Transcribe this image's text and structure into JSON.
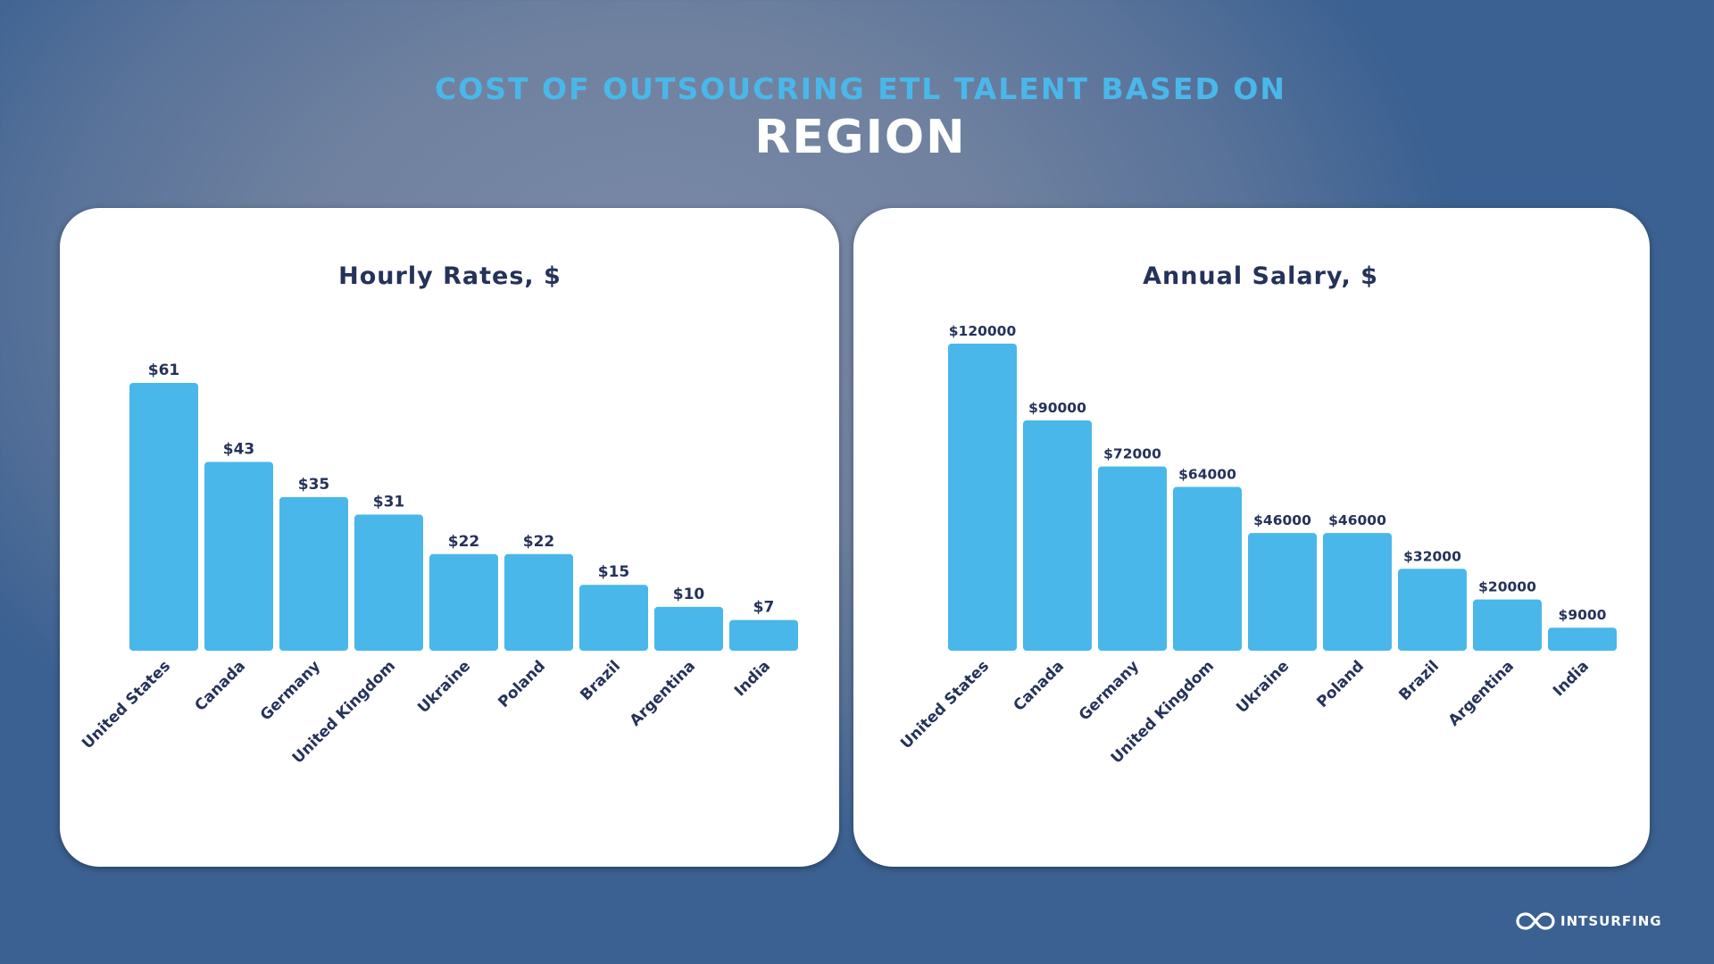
{
  "header": {
    "line1": "COST OF OUTSOUCRING ETL TALENT BASED ON",
    "line2": "REGION"
  },
  "brand": {
    "name": "INTSURFING",
    "icon": "infinity-logo-icon"
  },
  "colors": {
    "bar": "#4ab7ea",
    "text_dark": "#25325a",
    "accent": "#4ab7ea"
  },
  "chart_data": [
    {
      "type": "bar",
      "title": "Hourly Rates, $",
      "categories": [
        "United States",
        "Canada",
        "Germany",
        "United Kingdom",
        "Ukraine",
        "Poland",
        "Brazil",
        "Argentina",
        "India"
      ],
      "values": [
        61,
        43,
        35,
        31,
        22,
        22,
        15,
        10,
        7
      ],
      "labels": [
        "$61",
        "$43",
        "$35",
        "$31",
        "$22",
        "$22",
        "$15",
        "$10",
        "$7"
      ],
      "ylim": [
        0,
        61
      ],
      "grid": false
    },
    {
      "type": "bar",
      "title": "Annual Salary, $",
      "categories": [
        "United States",
        "Canada",
        "Germany",
        "United Kingdom",
        "Ukraine",
        "Poland",
        "Brazil",
        "Argentina",
        "India"
      ],
      "values": [
        120000,
        90000,
        72000,
        64000,
        46000,
        46000,
        32000,
        20000,
        9000
      ],
      "labels": [
        "$120000",
        "$90000",
        "$72000",
        "$64000",
        "$46000",
        "$46000",
        "$32000",
        "$20000",
        "$9000"
      ],
      "ylim": [
        0,
        120000
      ],
      "grid": false
    }
  ]
}
